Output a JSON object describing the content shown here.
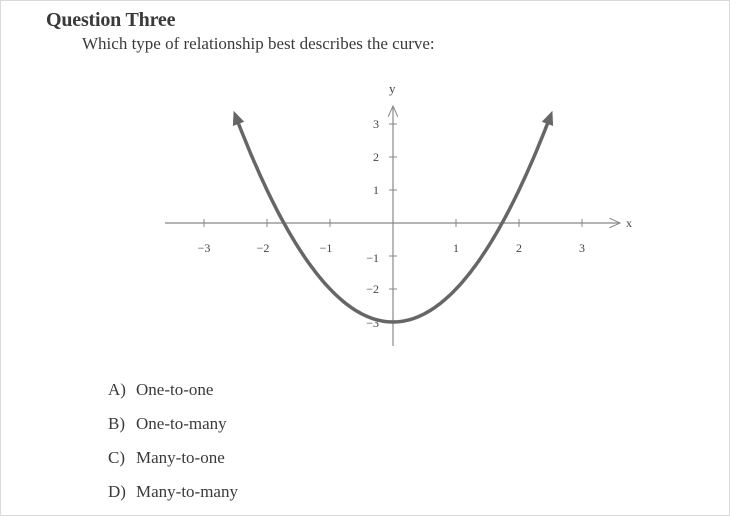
{
  "question": {
    "heading": "Question Three",
    "prompt": "Which type of relationship best describes the curve:"
  },
  "graph": {
    "x_axis_label": "x",
    "y_axis_label": "y",
    "x_ticks": [
      "−3",
      "−2",
      "−1",
      "1",
      "2",
      "3"
    ],
    "y_ticks": [
      "3",
      "2",
      "1",
      "−1",
      "−2",
      "−3"
    ],
    "curve_color": "#666666",
    "axis_color": "#888888"
  },
  "chart_data": {
    "type": "line",
    "function": "y = x^2 - 3",
    "x": [
      -2.45,
      -2,
      -1.5,
      -1,
      -0.5,
      0,
      0.5,
      1,
      1.5,
      2,
      2.45
    ],
    "y": [
      3.0,
      1.0,
      -0.75,
      -2.0,
      -2.75,
      -3.0,
      -2.75,
      -2.0,
      -0.75,
      1.0,
      3.0
    ],
    "xlim": [
      -3.2,
      3.6
    ],
    "ylim": [
      -3.6,
      4.0
    ],
    "xlabel": "x",
    "ylabel": "y",
    "arrows_on_both_ends": true,
    "grid": false
  },
  "choices": [
    {
      "letter": "A)",
      "text": "One-to-one"
    },
    {
      "letter": "B)",
      "text": "One-to-many"
    },
    {
      "letter": "C)",
      "text": "Many-to-one"
    },
    {
      "letter": "D)",
      "text": "Many-to-many"
    }
  ]
}
